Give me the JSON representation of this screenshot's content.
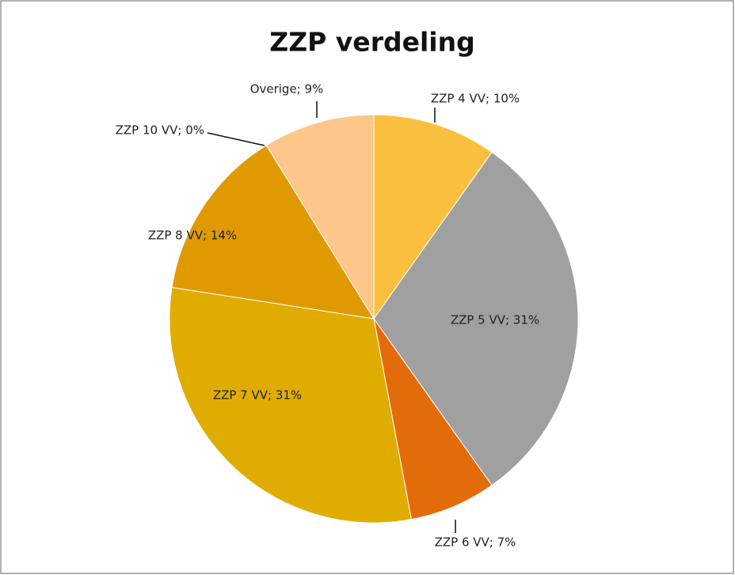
{
  "chart_data": {
    "type": "pie",
    "title": "ZZP verdeling",
    "values": [
      10,
      31,
      7,
      31,
      14,
      0,
      9
    ],
    "value_labels": [
      "ZZP 4 VV; 10%",
      "ZZP 5 VV; 31%",
      "ZZP 6 VV; 7%",
      "ZZP 7 VV; 31%",
      "ZZP 8 VV; 14%",
      "ZZP 10 VV; 0%",
      "Overige; 9%"
    ],
    "colors": [
      "#fbbf3f",
      "#a0a0a0",
      "#e36c0a",
      "#e0ac00",
      "#e09a00",
      "#c0c0c0",
      "#fdc68a"
    ]
  }
}
